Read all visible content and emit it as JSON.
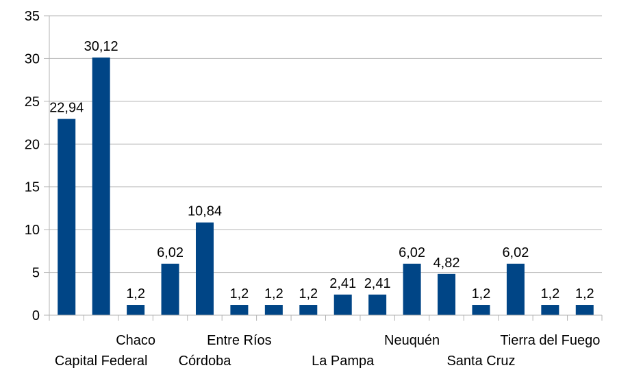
{
  "chart_data": {
    "type": "bar",
    "title": "",
    "xlabel": "",
    "ylabel": "",
    "ylim": [
      0,
      35
    ],
    "yticks": [
      "0",
      "5",
      "10",
      "15",
      "20",
      "25",
      "30",
      "35"
    ],
    "grid": true,
    "legend": "none",
    "bar_color": "#004586",
    "categories": [
      "",
      "Capital Federal",
      "Chaco",
      "",
      "Córdoba",
      "Entre Ríos",
      "",
      "",
      "La Pampa",
      "",
      "Neuquén",
      "",
      "Santa Cruz",
      "",
      "Tierra del Fuego",
      ""
    ],
    "category_rows": [
      0,
      1,
      0,
      0,
      1,
      0,
      0,
      0,
      1,
      0,
      0,
      0,
      1,
      0,
      0,
      0
    ],
    "values": [
      22.94,
      30.12,
      1.2,
      6.02,
      10.84,
      1.2,
      1.2,
      1.2,
      2.41,
      2.41,
      6.02,
      4.82,
      1.2,
      6.02,
      1.2,
      1.2
    ],
    "data_labels": [
      "22,94",
      "30,12",
      "1,2",
      "6,02",
      "10,84",
      "1,2",
      "1,2",
      "1,2",
      "2,41",
      "2,41",
      "6,02",
      "4,82",
      "1,2",
      "6,02",
      "1,2",
      "1,2"
    ]
  }
}
